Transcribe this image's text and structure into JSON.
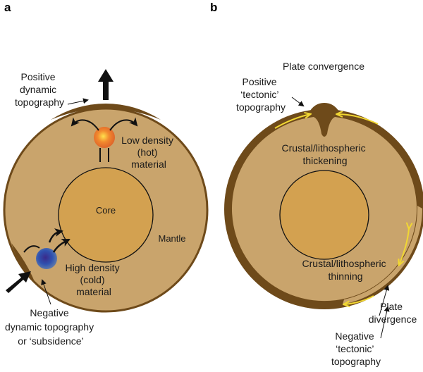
{
  "panel_a": {
    "letter": "a",
    "positive_label": [
      "Positive",
      "dynamic",
      "topography"
    ],
    "low_density_label": [
      "Low density",
      "(hot)",
      "material"
    ],
    "core_label": "Core",
    "mantle_label": "Mantle",
    "high_density_label": [
      "High density",
      "(cold)",
      "material"
    ],
    "negative_label": [
      "Negative",
      "dynamic topography",
      "or ‘subsidence’"
    ]
  },
  "panel_b": {
    "letter": "b",
    "convergence_label": "Plate convergence",
    "positive_label": [
      "Positive",
      "‘tectonic’",
      "topography"
    ],
    "thickening_label": [
      "Crustal/lithospheric",
      "thickening"
    ],
    "thinning_label": [
      "Crustal/lithospheric",
      "thinning"
    ],
    "divergence_label": [
      "Plate",
      "divergence"
    ],
    "negative_label": [
      "Negative",
      "‘tectonic’",
      "topography"
    ]
  },
  "colors": {
    "crust": "#6e4a1a",
    "mantle": "#c9a46c",
    "core": "#d3a150",
    "hot_plume": "#e8622a",
    "cold_plume": "#2f3f9a",
    "plate_arrow": "#f1d733"
  }
}
